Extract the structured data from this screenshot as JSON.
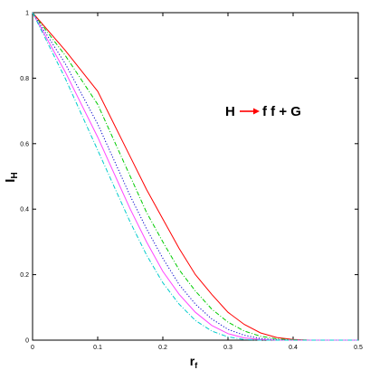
{
  "chart_data": {
    "type": "line",
    "title": "",
    "xlabel": "r",
    "xlabel_sub": "f",
    "ylabel": "I",
    "ylabel_sub": "H",
    "xlim": [
      0,
      0.5
    ],
    "ylim": [
      0,
      1
    ],
    "x_ticks": [
      "0",
      "0.1",
      "0.2",
      "0.3",
      "0.4",
      "0.5"
    ],
    "y_ticks": [
      "0",
      "0.2",
      "0.4",
      "0.6",
      "0.8",
      "1"
    ],
    "grid": false,
    "legend": "none",
    "annotation": {
      "left": "H",
      "right": "f f + G",
      "arrow_color": "#ff0000"
    },
    "series": [
      {
        "color": "#ff0000",
        "dash": "solid",
        "x": [
          0,
          0.05,
          0.1,
          0.125,
          0.15,
          0.175,
          0.2,
          0.225,
          0.25,
          0.275,
          0.3,
          0.325,
          0.35,
          0.375,
          0.4,
          0.425,
          0.45,
          0.475,
          0.5
        ],
        "y": [
          1,
          0.885,
          0.76,
          0.66,
          0.56,
          0.46,
          0.37,
          0.28,
          0.2,
          0.14,
          0.085,
          0.048,
          0.022,
          0.008,
          0.002,
          0,
          0,
          0,
          0
        ]
      },
      {
        "color": "#00cc00",
        "dash": "dashdot",
        "x": [
          0,
          0.05,
          0.1,
          0.125,
          0.15,
          0.175,
          0.2,
          0.225,
          0.25,
          0.275,
          0.3,
          0.325,
          0.35,
          0.375,
          0.4,
          0.425,
          0.45,
          0.475,
          0.5
        ],
        "y": [
          1,
          0.87,
          0.72,
          0.61,
          0.5,
          0.39,
          0.3,
          0.215,
          0.15,
          0.095,
          0.055,
          0.028,
          0.012,
          0.004,
          0.001,
          0,
          0,
          0,
          0
        ]
      },
      {
        "color": "#0000cc",
        "dash": "dotted",
        "x": [
          0,
          0.05,
          0.1,
          0.125,
          0.15,
          0.175,
          0.2,
          0.225,
          0.25,
          0.275,
          0.3,
          0.325,
          0.35,
          0.375,
          0.4,
          0.425,
          0.45,
          0.475,
          0.5
        ],
        "y": [
          1,
          0.845,
          0.66,
          0.55,
          0.44,
          0.34,
          0.25,
          0.17,
          0.11,
          0.065,
          0.033,
          0.015,
          0.005,
          0.001,
          0,
          0,
          0,
          0,
          0
        ]
      },
      {
        "color": "#ff44ff",
        "dash": "solid",
        "x": [
          0,
          0.05,
          0.1,
          0.125,
          0.15,
          0.175,
          0.2,
          0.225,
          0.25,
          0.275,
          0.3,
          0.325,
          0.35,
          0.375,
          0.4,
          0.425,
          0.45,
          0.475,
          0.5
        ],
        "y": [
          1,
          0.82,
          0.62,
          0.51,
          0.4,
          0.3,
          0.21,
          0.14,
          0.085,
          0.045,
          0.02,
          0.007,
          0.002,
          0,
          0,
          0,
          0,
          0,
          0
        ]
      },
      {
        "color": "#00cccc",
        "dash": "dashdot",
        "x": [
          0,
          0.05,
          0.1,
          0.125,
          0.15,
          0.175,
          0.2,
          0.225,
          0.25,
          0.275,
          0.3,
          0.325,
          0.35,
          0.375,
          0.4,
          0.425,
          0.45,
          0.475,
          0.5
        ],
        "y": [
          1,
          0.8,
          0.58,
          0.47,
          0.36,
          0.26,
          0.175,
          0.11,
          0.06,
          0.028,
          0.01,
          0.002,
          0,
          0,
          0,
          0,
          0,
          0,
          0
        ]
      }
    ]
  }
}
